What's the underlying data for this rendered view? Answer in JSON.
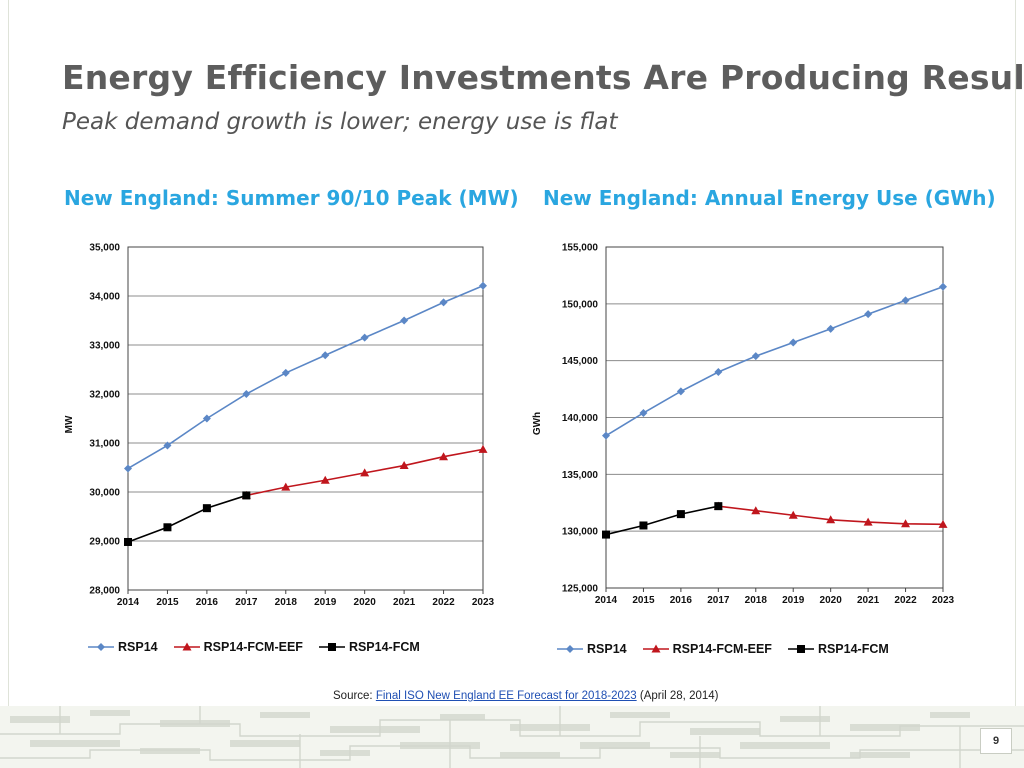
{
  "slide": {
    "title": "Energy Efficiency Investments Are Producing Results",
    "subtitle": "Peak demand growth is lower; energy use is flat",
    "source_label": "Source:",
    "source_link": "Final ISO New England EE Forecast for 2018-2023",
    "source_date": "(April 28, 2014)",
    "page_number": "9"
  },
  "colors": {
    "heading": "#2aa6e0",
    "rsp14": "#5b87c6",
    "eef": "#c0161d",
    "fcm": "#000000"
  },
  "chart_data": [
    {
      "type": "line",
      "heading": "New England:  Summer 90/10 Peak (MW)",
      "title": "New England: Summer 90/10 Peak (MW)",
      "xlabel": "",
      "ylabel": "MW",
      "categories": [
        "2014",
        "2015",
        "2016",
        "2017",
        "2018",
        "2019",
        "2020",
        "2021",
        "2022",
        "2023"
      ],
      "ylim": [
        28000,
        35000
      ],
      "yticks": [
        28000,
        29000,
        30000,
        31000,
        32000,
        33000,
        34000,
        35000
      ],
      "ytick_labels": [
        "28,000",
        "29,000",
        "30,000",
        "31,000",
        "32,000",
        "33,000",
        "34,000",
        "35,000"
      ],
      "grid": true,
      "legend_position": "bottom",
      "series": [
        {
          "name": "RSP14",
          "color": "#5b87c6",
          "marker": "diamond",
          "values": [
            30480,
            30950,
            31500,
            32000,
            32430,
            32790,
            33150,
            33500,
            33870,
            34210
          ]
        },
        {
          "name": "RSP14-FCM-EEF",
          "color": "#c0161d",
          "marker": "triangle",
          "values": [
            null,
            null,
            null,
            29930,
            30100,
            30240,
            30390,
            30540,
            30720,
            30870
          ]
        },
        {
          "name": "RSP14-FCM",
          "color": "#000000",
          "marker": "square",
          "values": [
            28980,
            29280,
            29670,
            29930,
            null,
            null,
            null,
            null,
            null,
            null
          ]
        }
      ]
    },
    {
      "type": "line",
      "heading": "New England:  Annual Energy Use (GWh)",
      "title": "New England: Annual Energy Use (GWh)",
      "xlabel": "",
      "ylabel": "GWh",
      "categories": [
        "2014",
        "2015",
        "2016",
        "2017",
        "2018",
        "2019",
        "2020",
        "2021",
        "2022",
        "2023"
      ],
      "ylim": [
        125000,
        155000
      ],
      "yticks": [
        125000,
        130000,
        135000,
        140000,
        145000,
        150000,
        155000
      ],
      "ytick_labels": [
        "125,000",
        "130,000",
        "135,000",
        "140,000",
        "145,000",
        "150,000",
        "155,000"
      ],
      "grid": true,
      "legend_position": "bottom",
      "series": [
        {
          "name": "RSP14",
          "color": "#5b87c6",
          "marker": "diamond",
          "values": [
            138400,
            140400,
            142300,
            144000,
            145400,
            146600,
            147800,
            149100,
            150300,
            151500
          ]
        },
        {
          "name": "RSP14-FCM-EEF",
          "color": "#c0161d",
          "marker": "triangle",
          "values": [
            null,
            null,
            null,
            132200,
            131800,
            131400,
            131000,
            130800,
            130650,
            130600
          ]
        },
        {
          "name": "RSP14-FCM",
          "color": "#000000",
          "marker": "square",
          "values": [
            129700,
            130500,
            131500,
            132200,
            null,
            null,
            null,
            null,
            null,
            null
          ]
        }
      ]
    }
  ]
}
